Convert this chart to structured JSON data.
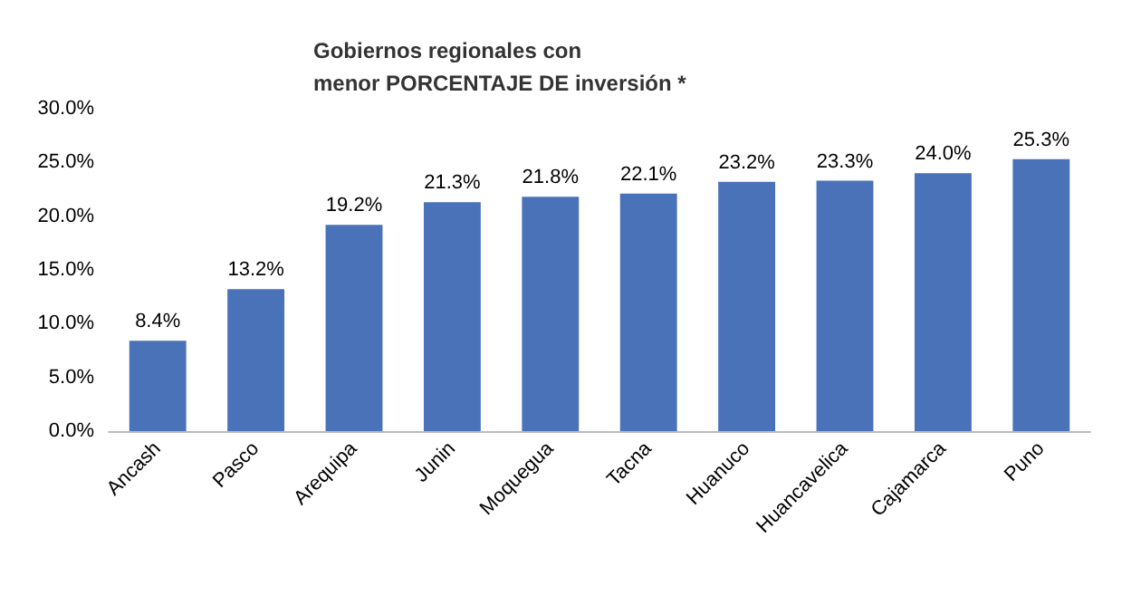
{
  "chart_data": {
    "type": "bar",
    "title": "Gobiernos regionales con\nmenor PORCENTAJE DE inversión *",
    "categories": [
      "Ancash",
      "Pasco",
      "Arequipa",
      "Junin",
      "Moquegua",
      "Tacna",
      "Huanuco",
      "Huancavelica",
      "Cajamarca",
      "Puno"
    ],
    "values": [
      8.4,
      13.2,
      19.2,
      21.3,
      21.8,
      22.1,
      23.2,
      23.3,
      24.0,
      25.3
    ],
    "value_labels": [
      "8.4%",
      "13.2%",
      "19.2%",
      "21.3%",
      "21.8%",
      "22.1%",
      "23.2%",
      "23.3%",
      "24.0%",
      "25.3%"
    ],
    "color": "#4a72b8",
    "ylim": [
      0,
      30
    ],
    "yticks": [
      {
        "value": 0,
        "label": "0.0%"
      },
      {
        "value": 5,
        "label": "5.0%"
      },
      {
        "value": 10,
        "label": "10.0%"
      },
      {
        "value": 15,
        "label": "15.0%"
      },
      {
        "value": 20,
        "label": "20.0%"
      },
      {
        "value": 25,
        "label": "25.0%"
      },
      {
        "value": 30,
        "label": "30.0%"
      }
    ],
    "grid": false
  }
}
